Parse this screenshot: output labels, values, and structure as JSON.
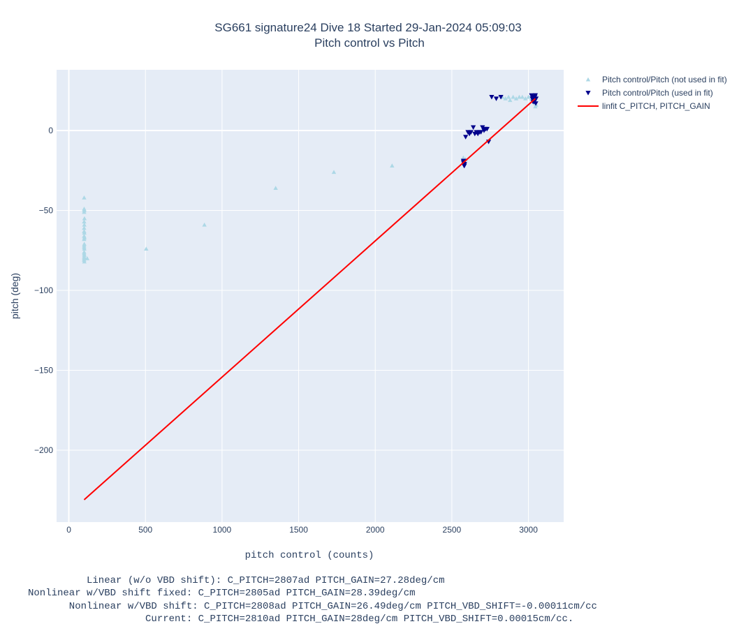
{
  "chart_data": {
    "type": "scatter",
    "title": "SG661 signature24 Dive 18 Started 29-Jan-2024 05:09:03",
    "subtitle": "Pitch control vs Pitch",
    "xlabel": "pitch control (counts)",
    "ylabel": "pitch (deg)",
    "xlim": [
      -80,
      3230
    ],
    "ylim": [
      -245,
      38
    ],
    "xticks": [
      0,
      500,
      1000,
      1500,
      2000,
      2500,
      3000
    ],
    "xtick_labels": [
      "0",
      "500",
      "1000",
      "1500",
      "2000",
      "2500",
      "3000"
    ],
    "yticks": [
      0,
      -50,
      -100,
      -150,
      -200
    ],
    "ytick_labels": [
      "0",
      "−50",
      "−100",
      "−150",
      "−200"
    ],
    "grid": true,
    "legend_position": "top-right outside plot",
    "plot_bg": "#e5ecf6",
    "series": [
      {
        "name": "Pitch control/Pitch (not used in fit)",
        "marker": "triangle-up",
        "color": "#add8e6",
        "x": [
          100,
          100,
          101,
          100,
          102,
          100,
          101,
          100,
          100,
          101,
          100,
          102,
          100,
          101,
          100,
          100,
          101,
          100,
          100,
          101,
          100,
          102,
          100,
          101,
          100,
          120,
          505,
          885,
          1350,
          1730,
          2110,
          2575,
          2590,
          2580,
          2830,
          2850,
          2870,
          2880,
          2900,
          2920,
          2940,
          2960,
          2980,
          3000,
          3020,
          3040,
          3045,
          3050,
          3040,
          3045
        ],
        "y": [
          -42,
          -49,
          -50,
          -51,
          -55,
          -57,
          -59,
          -61,
          -63,
          -64,
          -66,
          -67,
          -68,
          -71,
          -72,
          -73,
          -74,
          -76,
          -77,
          -78,
          -79,
          -80,
          -81,
          -82,
          -80,
          -80,
          -74,
          -59,
          -36,
          -26,
          -22,
          -17,
          -18,
          -19,
          21,
          20,
          21,
          19,
          21,
          20,
          21,
          21,
          20,
          21,
          20,
          19,
          17,
          16,
          18,
          15
        ]
      },
      {
        "name": "Pitch control/Pitch (used in fit)",
        "marker": "triangle-down",
        "color": "#00008b",
        "x": [
          2575,
          2578,
          2580,
          2582,
          2577,
          2579,
          2581,
          2576,
          2580,
          2583,
          2590,
          2605,
          2615,
          2625,
          2640,
          2650,
          2660,
          2670,
          2680,
          2690,
          2700,
          2710,
          2715,
          2720,
          2730,
          2740,
          2760,
          2790,
          2820,
          3020,
          3025,
          3030,
          3035,
          3040,
          3045,
          3050,
          3038,
          3042,
          3032,
          3048,
          3028,
          3044
        ],
        "y": [
          -19,
          -20,
          -21,
          -22,
          -20,
          -19,
          -21,
          -20,
          -22,
          -21,
          -4,
          -1,
          -2,
          -1,
          2,
          -2,
          -1,
          -2,
          -1,
          -1,
          2,
          0,
          1,
          1,
          1,
          -7,
          21,
          20,
          21,
          22,
          20,
          18,
          21,
          19,
          22,
          20,
          18,
          21,
          19,
          17,
          20,
          22
        ]
      },
      {
        "name": "linfit C_PITCH, PITCH_GAIN",
        "marker": "line",
        "color": "#ff0000",
        "x": [
          100,
          3045
        ],
        "y": [
          -231,
          20
        ]
      }
    ]
  },
  "notes": [
    "     Linear (w/o VBD shift): C_PITCH=2807ad PITCH_GAIN=27.28deg/cm",
    "Nonlinear w/VBD shift fixed: C_PITCH=2805ad PITCH_GAIN=28.39deg/cm",
    "       Nonlinear w/VBD shift: C_PITCH=2808ad PITCH_GAIN=26.49deg/cm PITCH_VBD_SHIFT=-0.00011cm/cc",
    "                    Current: C_PITCH=2810ad PITCH_GAIN=28deg/cm PITCH_VBD_SHIFT=0.00015cm/cc."
  ]
}
